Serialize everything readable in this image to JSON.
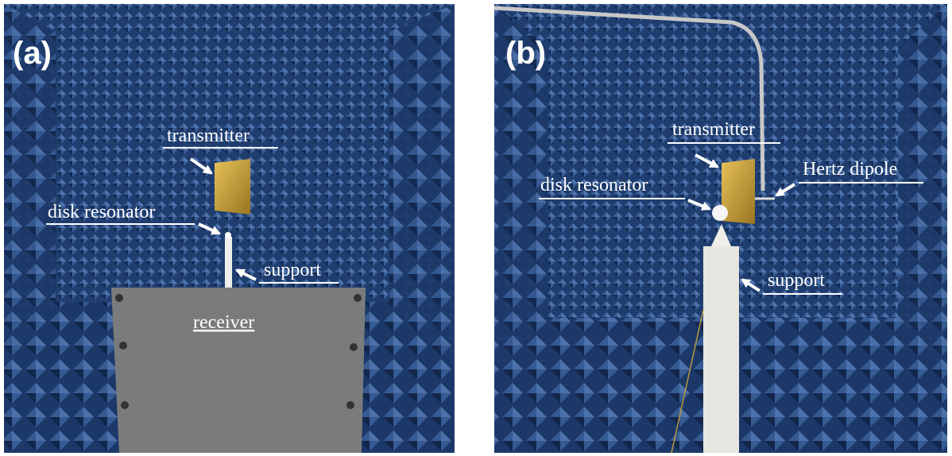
{
  "panels": [
    {
      "label": "(a)",
      "annotations": {
        "transmitter": "transmitter",
        "disk_resonator": "disk resonator",
        "support": "support",
        "receiver": "receiver"
      }
    },
    {
      "label": "(b)",
      "annotations": {
        "transmitter": "transmitter",
        "hertz_dipole": "Hertz dipole",
        "disk_resonator": "disk resonator",
        "support": "support"
      }
    }
  ]
}
